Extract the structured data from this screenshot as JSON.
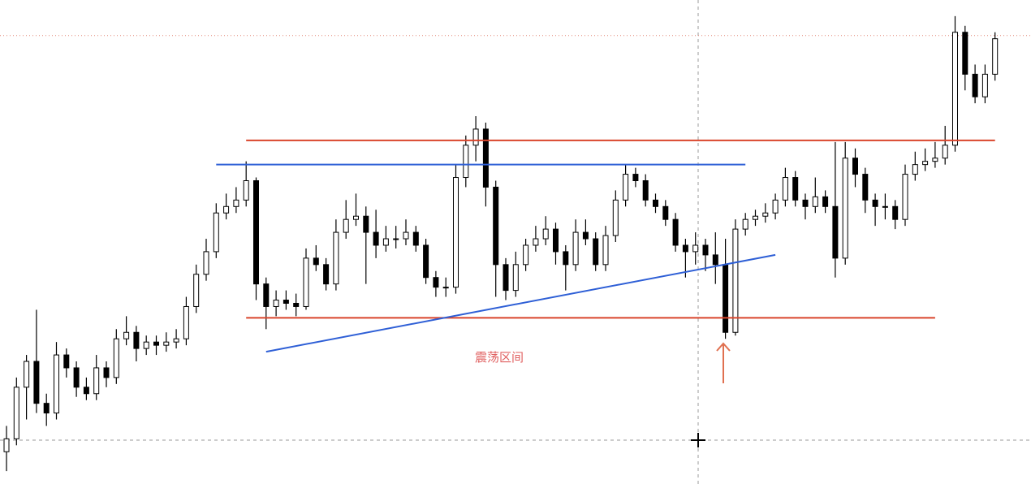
{
  "chart_data": {
    "type": "candlestick",
    "ylim": [
      0,
      150
    ],
    "ohlc": [
      [
        10,
        18,
        4,
        14
      ],
      [
        14,
        33,
        12,
        30
      ],
      [
        30,
        40,
        20,
        38
      ],
      [
        38,
        54,
        22,
        25
      ],
      [
        25,
        28,
        18,
        22
      ],
      [
        22,
        44,
        20,
        40
      ],
      [
        40,
        42,
        33,
        36
      ],
      [
        36,
        38,
        27,
        30
      ],
      [
        30,
        33,
        26,
        28
      ],
      [
        28,
        40,
        26,
        36
      ],
      [
        36,
        38,
        30,
        33
      ],
      [
        33,
        48,
        31,
        45
      ],
      [
        45,
        52,
        43,
        47
      ],
      [
        47,
        49,
        38,
        42
      ],
      [
        42,
        46,
        40,
        44
      ],
      [
        44,
        46,
        40,
        43
      ],
      [
        43,
        47,
        41,
        44
      ],
      [
        44,
        48,
        42,
        45
      ],
      [
        45,
        58,
        43,
        55
      ],
      [
        55,
        68,
        53,
        65
      ],
      [
        65,
        76,
        63,
        72
      ],
      [
        72,
        87,
        70,
        84
      ],
      [
        84,
        90,
        82,
        86
      ],
      [
        86,
        92,
        84,
        88
      ],
      [
        88,
        100,
        86,
        94
      ],
      [
        94,
        95,
        57,
        62
      ],
      [
        62,
        64,
        48,
        55
      ],
      [
        55,
        60,
        52,
        57
      ],
      [
        57,
        60,
        54,
        56
      ],
      [
        56,
        59,
        52,
        55
      ],
      [
        55,
        73,
        54,
        70
      ],
      [
        70,
        74,
        66,
        68
      ],
      [
        68,
        70,
        60,
        62
      ],
      [
        62,
        82,
        60,
        78
      ],
      [
        78,
        88,
        76,
        82
      ],
      [
        82,
        90,
        80,
        83
      ],
      [
        83,
        86,
        62,
        78
      ],
      [
        78,
        85,
        70,
        74
      ],
      [
        74,
        80,
        72,
        76
      ],
      [
        76,
        80,
        73,
        76
      ],
      [
        76,
        82,
        74,
        78
      ],
      [
        78,
        80,
        72,
        74
      ],
      [
        74,
        76,
        62,
        64
      ],
      [
        64,
        66,
        58,
        61
      ],
      [
        61,
        64,
        58,
        61
      ],
      [
        61,
        99,
        59,
        95
      ],
      [
        95,
        108,
        92,
        105
      ],
      [
        105,
        114,
        100,
        110
      ],
      [
        110,
        112,
        86,
        92
      ],
      [
        92,
        94,
        58,
        68
      ],
      [
        68,
        70,
        57,
        60
      ],
      [
        60,
        72,
        58,
        68
      ],
      [
        68,
        76,
        66,
        74
      ],
      [
        74,
        80,
        72,
        76
      ],
      [
        76,
        83,
        74,
        79
      ],
      [
        79,
        81,
        68,
        72
      ],
      [
        72,
        74,
        60,
        68
      ],
      [
        68,
        82,
        66,
        78
      ],
      [
        78,
        82,
        74,
        76
      ],
      [
        76,
        78,
        66,
        68
      ],
      [
        68,
        80,
        66,
        77
      ],
      [
        77,
        91,
        75,
        88
      ],
      [
        88,
        99,
        86,
        96
      ],
      [
        96,
        98,
        92,
        94
      ],
      [
        94,
        96,
        86,
        88
      ],
      [
        88,
        90,
        84,
        86
      ],
      [
        86,
        88,
        80,
        82
      ],
      [
        82,
        84,
        72,
        74
      ],
      [
        74,
        76,
        64,
        72
      ],
      [
        72,
        78,
        68,
        74
      ],
      [
        74,
        76,
        66,
        71
      ],
      [
        71,
        78,
        62,
        68
      ],
      [
        68,
        76,
        45,
        47
      ],
      [
        47,
        82,
        46,
        79
      ],
      [
        79,
        84,
        77,
        82
      ],
      [
        82,
        85,
        80,
        83
      ],
      [
        83,
        87,
        81,
        84
      ],
      [
        84,
        90,
        82,
        88
      ],
      [
        88,
        98,
        86,
        95
      ],
      [
        95,
        97,
        86,
        88
      ],
      [
        88,
        90,
        82,
        86
      ],
      [
        86,
        95,
        84,
        89
      ],
      [
        89,
        91,
        84,
        86
      ],
      [
        86,
        106,
        64,
        70
      ],
      [
        70,
        106,
        68,
        101
      ],
      [
        101,
        104,
        92,
        96
      ],
      [
        96,
        98,
        84,
        88
      ],
      [
        88,
        90,
        80,
        86
      ],
      [
        86,
        90,
        82,
        86
      ],
      [
        86,
        88,
        79,
        82
      ],
      [
        82,
        99,
        80,
        96
      ],
      [
        96,
        103,
        94,
        99
      ],
      [
        99,
        104,
        97,
        100
      ],
      [
        100,
        106,
        98,
        101
      ],
      [
        101,
        111,
        99,
        105
      ],
      [
        105,
        145,
        103,
        140
      ],
      [
        140,
        142,
        122,
        127
      ],
      [
        127,
        130,
        118,
        120
      ],
      [
        120,
        130,
        118,
        127
      ],
      [
        127,
        140,
        125,
        138
      ]
    ],
    "lines": [
      {
        "color": "#d9452b",
        "x": [
          24,
          99
        ],
        "values": [
          106.5,
          106.5
        ]
      },
      {
        "color": "#d9452b",
        "x": [
          24,
          93
        ],
        "values": [
          51.5,
          51.5
        ]
      },
      {
        "color": "#2e5fd6",
        "x": [
          21,
          74
        ],
        "values": [
          99,
          99
        ]
      },
      {
        "color": "#2e5fd6",
        "x": [
          26,
          77
        ],
        "values": [
          41,
          71
        ]
      }
    ],
    "price_line": 139,
    "annotation": "震荡区间"
  }
}
